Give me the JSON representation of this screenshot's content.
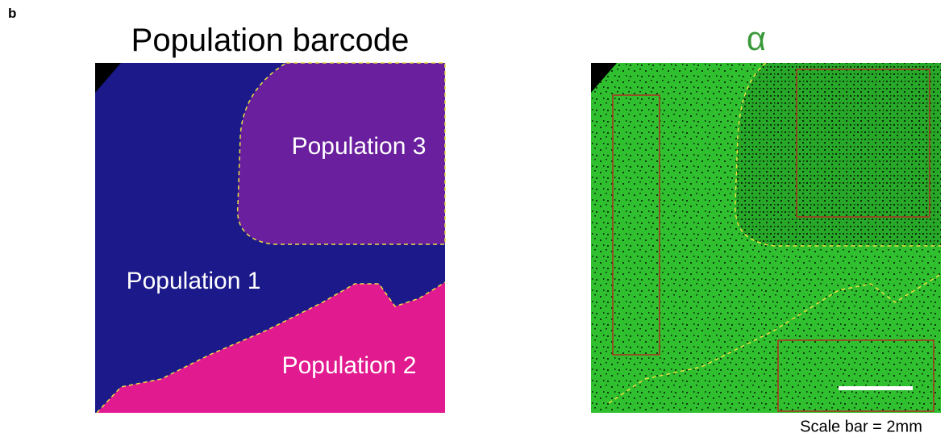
{
  "panel_label": "b",
  "left": {
    "title": "Population barcode",
    "labels": [
      "Population 3",
      "Population 1",
      "Population 2"
    ]
  },
  "right": {
    "title": "α",
    "caption": "Scale bar = 2mm"
  }
}
